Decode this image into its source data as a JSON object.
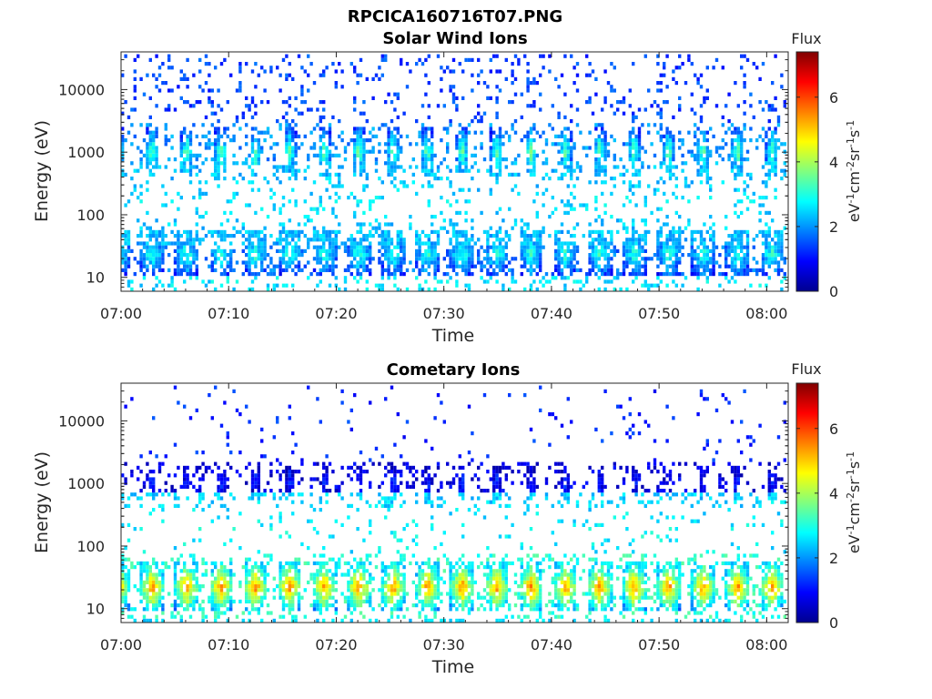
{
  "figure_title": "RPCICA160716T07.PNG",
  "chart_data": [
    {
      "type": "heatmap",
      "title": "Solar Wind Ions",
      "xlabel": "Time",
      "ylabel": "Energy (eV)",
      "x_ticks": [
        "07:00",
        "07:10",
        "07:20",
        "07:30",
        "07:40",
        "07:50",
        "08:00"
      ],
      "xlim_minutes": [
        0,
        62
      ],
      "y_scale": "log",
      "y_ticks": [
        10,
        100,
        1000,
        10000
      ],
      "y_tick_labels": [
        "10",
        "100",
        "1000",
        "10000"
      ],
      "ylim": [
        6,
        40000
      ],
      "colorbar": {
        "title": "Flux",
        "unit_base": "eV",
        "unit_parts": [
          "-1",
          "cm",
          "-2",
          "sr",
          "-1",
          "s",
          "-1"
        ],
        "range": [
          0,
          7.4
        ],
        "ticks": [
          "0",
          "2",
          "4",
          "6"
        ]
      },
      "bands": [
        {
          "center_ev": 1000,
          "width_ev_factor": 1.5,
          "peak_flux": 3.6,
          "period_minutes": 3.2,
          "duration_minutes": 1.1
        },
        {
          "center_ev": 24,
          "width_ev_factor": 1.5,
          "peak_flux": 3.2,
          "period_minutes": 3.2,
          "duration_minutes": 2.2
        },
        {
          "center_ev": 10000,
          "width_ev_factor": 3,
          "peak_flux": 1.0,
          "density": "sparse"
        },
        {
          "center_ev": 150,
          "width_ev_factor": 3,
          "peak_flux": 2.2,
          "density": "sparse"
        }
      ]
    },
    {
      "type": "heatmap",
      "title": "Cometary Ions",
      "xlabel": "Time",
      "ylabel": "Energy (eV)",
      "x_ticks": [
        "07:00",
        "07:10",
        "07:20",
        "07:30",
        "07:40",
        "07:50",
        "08:00"
      ],
      "xlim_minutes": [
        0,
        62
      ],
      "y_scale": "log",
      "y_ticks": [
        10,
        100,
        1000,
        10000
      ],
      "y_tick_labels": [
        "10",
        "100",
        "1000",
        "10000"
      ],
      "ylim": [
        6,
        40000
      ],
      "colorbar": {
        "title": "Flux",
        "unit_base": "eV",
        "unit_parts": [
          "-1",
          "cm",
          "-2",
          "sr",
          "-1",
          "s",
          "-1"
        ],
        "range": [
          0,
          7.4
        ],
        "ticks": [
          "0",
          "2",
          "4",
          "6"
        ]
      },
      "bands": [
        {
          "center_ev": 22,
          "width_ev_factor": 1.6,
          "peak_flux": 5.6,
          "period_minutes": 3.2,
          "duration_minutes": 2.2
        },
        {
          "center_ev": 1000,
          "width_ev_factor": 1.2,
          "peak_flux": 1.3,
          "period_minutes": 3.2,
          "duration_minutes": 0.7
        },
        {
          "center_ev": 10000,
          "width_ev_factor": 3,
          "peak_flux": 0.8,
          "density": "very sparse"
        },
        {
          "center_ev": 150,
          "width_ev_factor": 3,
          "peak_flux": 2.4,
          "density": "sparse"
        }
      ]
    }
  ]
}
